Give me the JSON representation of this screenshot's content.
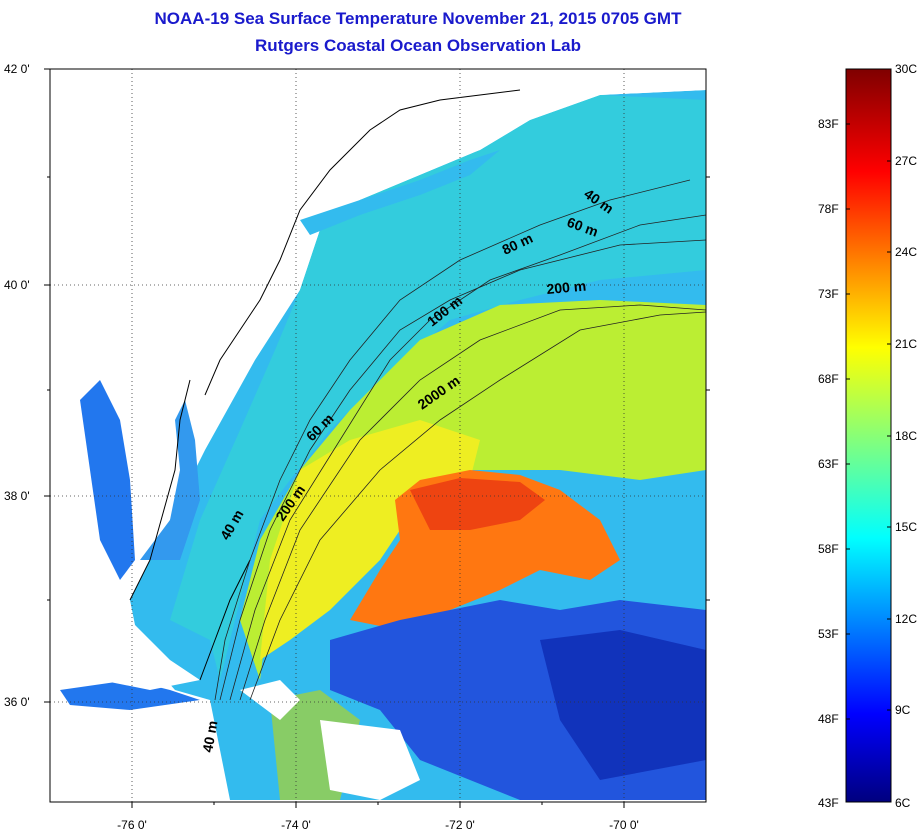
{
  "title": "NOAA-19 Sea Surface Temperature November 21, 2015 0705 GMT",
  "subtitle": "Rutgers Coastal Ocean Observation Lab",
  "latitude_ticks": [
    "42 0'",
    "40 0'",
    "38 0'",
    "36 0'"
  ],
  "longitude_ticks": [
    "-76 0'",
    "-74 0'",
    "-72 0'",
    "-70 0'"
  ],
  "colorbar": {
    "fahrenheit_labels": [
      "83F",
      "78F",
      "73F",
      "68F",
      "63F",
      "58F",
      "53F",
      "48F",
      "43F"
    ],
    "celsius_labels": [
      "30C",
      "27C",
      "24C",
      "21C",
      "18C",
      "15C",
      "12C",
      "9C",
      "6C"
    ],
    "range_c": [
      6,
      30
    ],
    "colormap": "jet"
  },
  "isobath_labels": [
    "40 m",
    "60 m",
    "80 m",
    "200 m",
    "100 m",
    "2000 m",
    "60 m",
    "200 m",
    "40 m",
    "40 m"
  ],
  "colors": {
    "title": "#1a1acc",
    "land": "#ffffff",
    "coastline": "#000000"
  }
}
